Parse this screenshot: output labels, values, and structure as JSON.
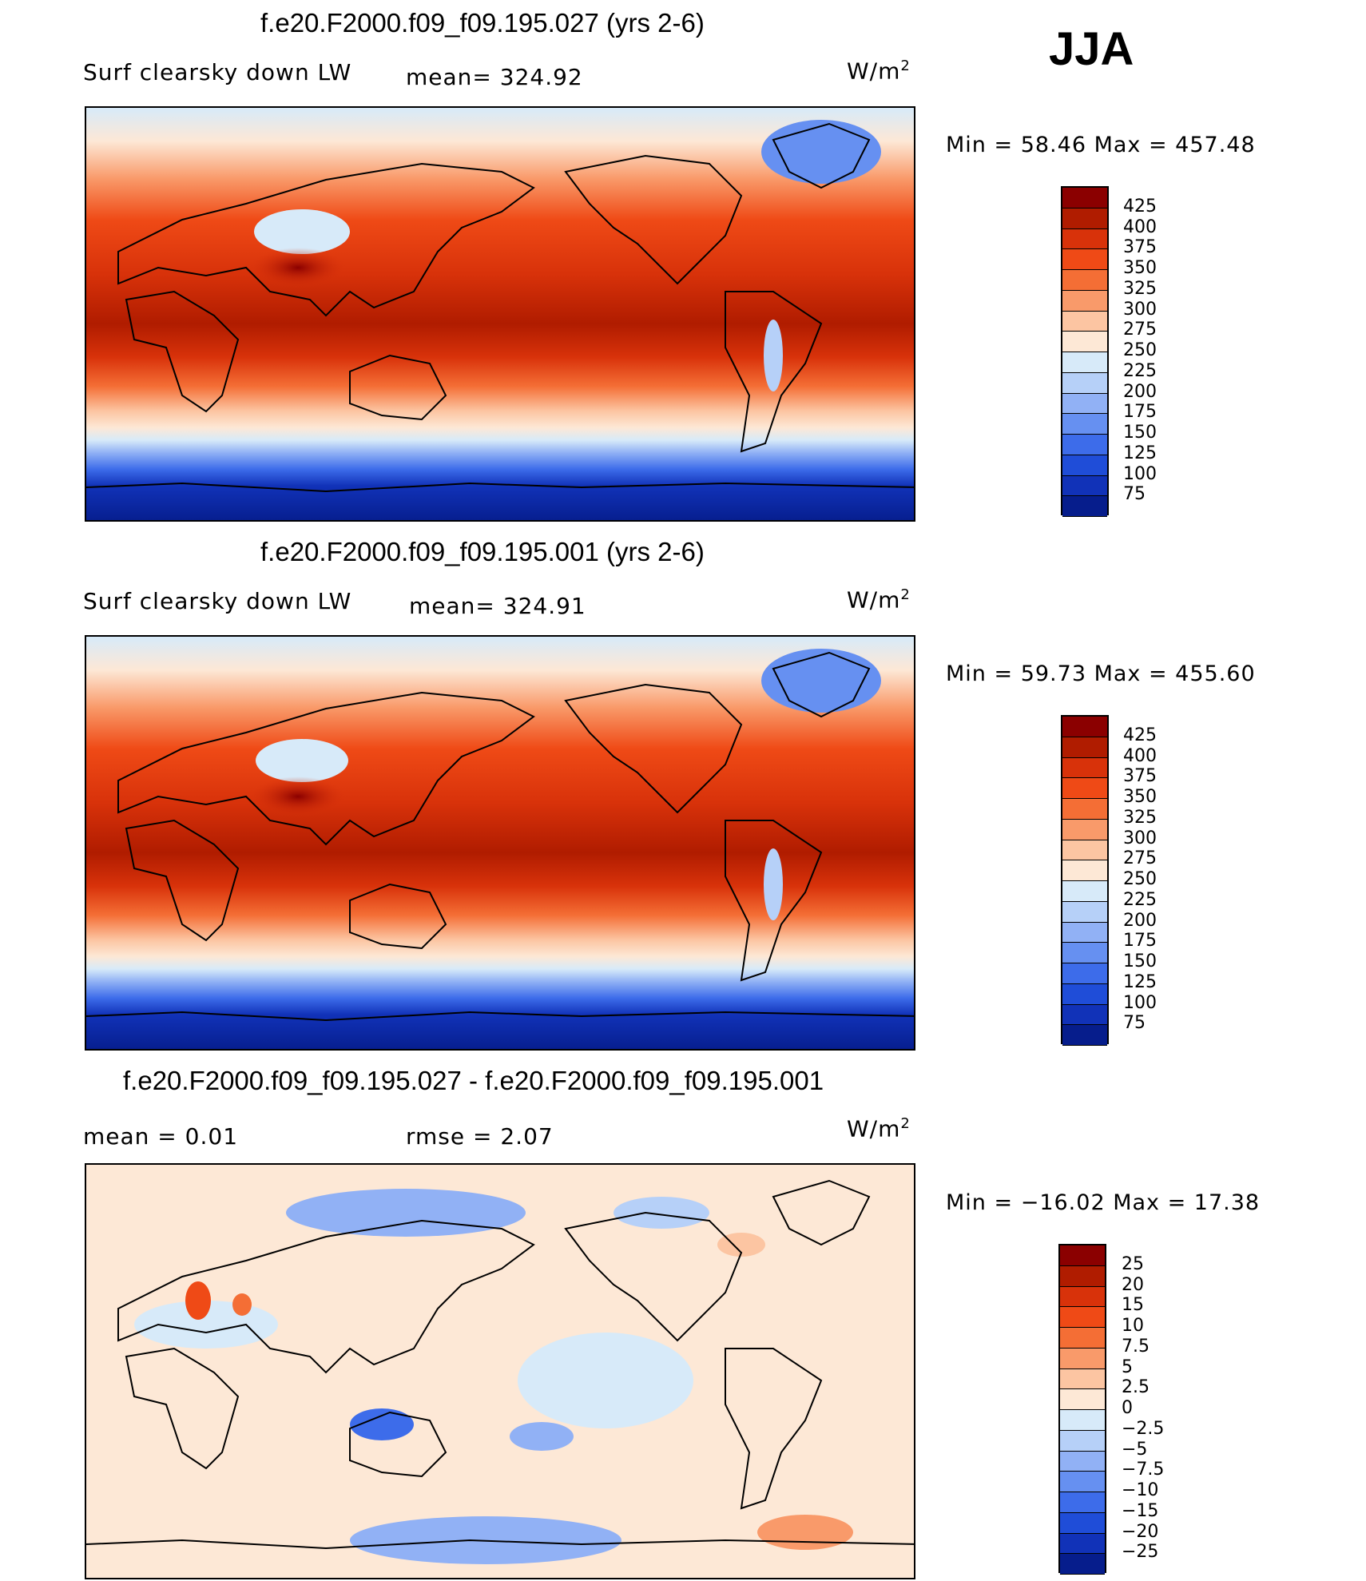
{
  "season": "JJA",
  "units_base": "W/m",
  "units_exp": "2",
  "panel1": {
    "title": "f.e20.F2000.f09_f09.195.027 (yrs 2-6)",
    "variable": "Surf clearsky down LW",
    "mean_label": "mean= 324.92",
    "min_max": "Min =   58.46 Max = 457.48"
  },
  "panel2": {
    "title": "f.e20.F2000.f09_f09.195.001 (yrs 2-6)",
    "variable": "Surf clearsky down LW",
    "mean_label": "mean= 324.91",
    "min_max": "Min =   59.73 Max = 455.60"
  },
  "panel3": {
    "title": "f.e20.F2000.f09_f09.195.027 - f.e20.F2000.f09_f09.195.001",
    "mean_label": "mean =    0.01",
    "rmse_label": "rmse =    2.07",
    "min_max": "Min = −16.02 Max =   17.38"
  },
  "colorbar_main": {
    "labels": [
      "425",
      "400",
      "375",
      "350",
      "325",
      "300",
      "275",
      "250",
      "225",
      "200",
      "175",
      "150",
      "125",
      "100",
      "75"
    ],
    "colors": [
      "#8b0000",
      "#b01c00",
      "#d8320a",
      "#ef4a16",
      "#f46e35",
      "#f99a6a",
      "#fcc5a2",
      "#fde8d6",
      "#d7eaf9",
      "#b6d0f8",
      "#91b1f5",
      "#6690f1",
      "#3d6cea",
      "#1f4dd8",
      "#1132b8",
      "#061d8c"
    ]
  },
  "colorbar_diff": {
    "labels": [
      "25",
      "20",
      "15",
      "10",
      "7.5",
      "5",
      "2.5",
      "0",
      "−2.5",
      "−5",
      "−7.5",
      "−10",
      "−15",
      "−20",
      "−25"
    ],
    "colors": [
      "#8b0000",
      "#b01c00",
      "#d8320a",
      "#ef4a16",
      "#f46e35",
      "#f99a6a",
      "#fcc5a2",
      "#fde8d6",
      "#d7eaf9",
      "#b6d0f8",
      "#91b1f5",
      "#6690f1",
      "#3d6cea",
      "#1f4dd8",
      "#1132b8",
      "#061d8c"
    ]
  }
}
